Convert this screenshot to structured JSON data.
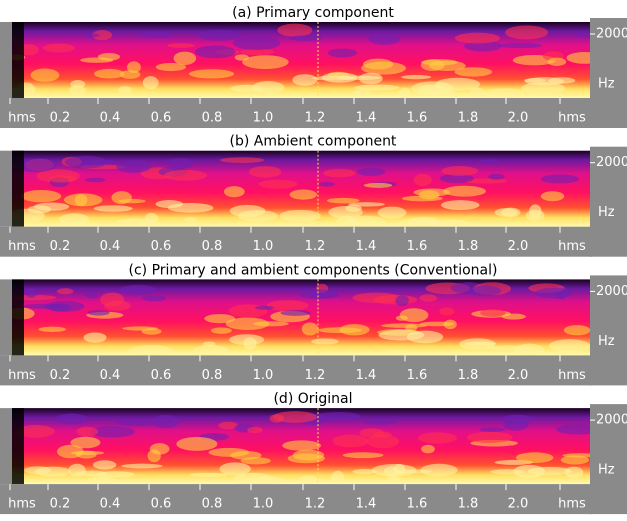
{
  "panels": [
    {
      "title": "(a) Primary component",
      "time_labels": [
        "hms",
        "0.2",
        "0.4",
        "0.6",
        "0.8",
        "1.0",
        "1.2",
        "1.4",
        "1.6",
        "1.8",
        "2.0",
        "hms"
      ],
      "freq_labels": [
        "2000",
        "Hz"
      ]
    },
    {
      "title": "(b) Ambient component",
      "time_labels": [
        "hms",
        "0.2",
        "0.4",
        "0.6",
        "0.8",
        "1.0",
        "1.2",
        "1.4",
        "1.6",
        "1.8",
        "2.0",
        "hms"
      ],
      "freq_labels": [
        "2000",
        "Hz"
      ]
    },
    {
      "title": "(c) Primary and ambient components (Conventional)",
      "time_labels": [
        "hms",
        "0.2",
        "0.4",
        "0.6",
        "0.8",
        "1.0",
        "1.2",
        "1.4",
        "1.6",
        "1.8",
        "2.0",
        "hms"
      ],
      "freq_labels": [
        "2000",
        "Hz"
      ]
    },
    {
      "title": "(d) Original",
      "time_labels": [
        "hms",
        "0.2",
        "0.4",
        "0.6",
        "0.8",
        "1.0",
        "1.2",
        "1.4",
        "1.6",
        "1.8",
        "2.0",
        "hms"
      ],
      "freq_labels": [
        "2000",
        "Hz"
      ]
    }
  ]
}
